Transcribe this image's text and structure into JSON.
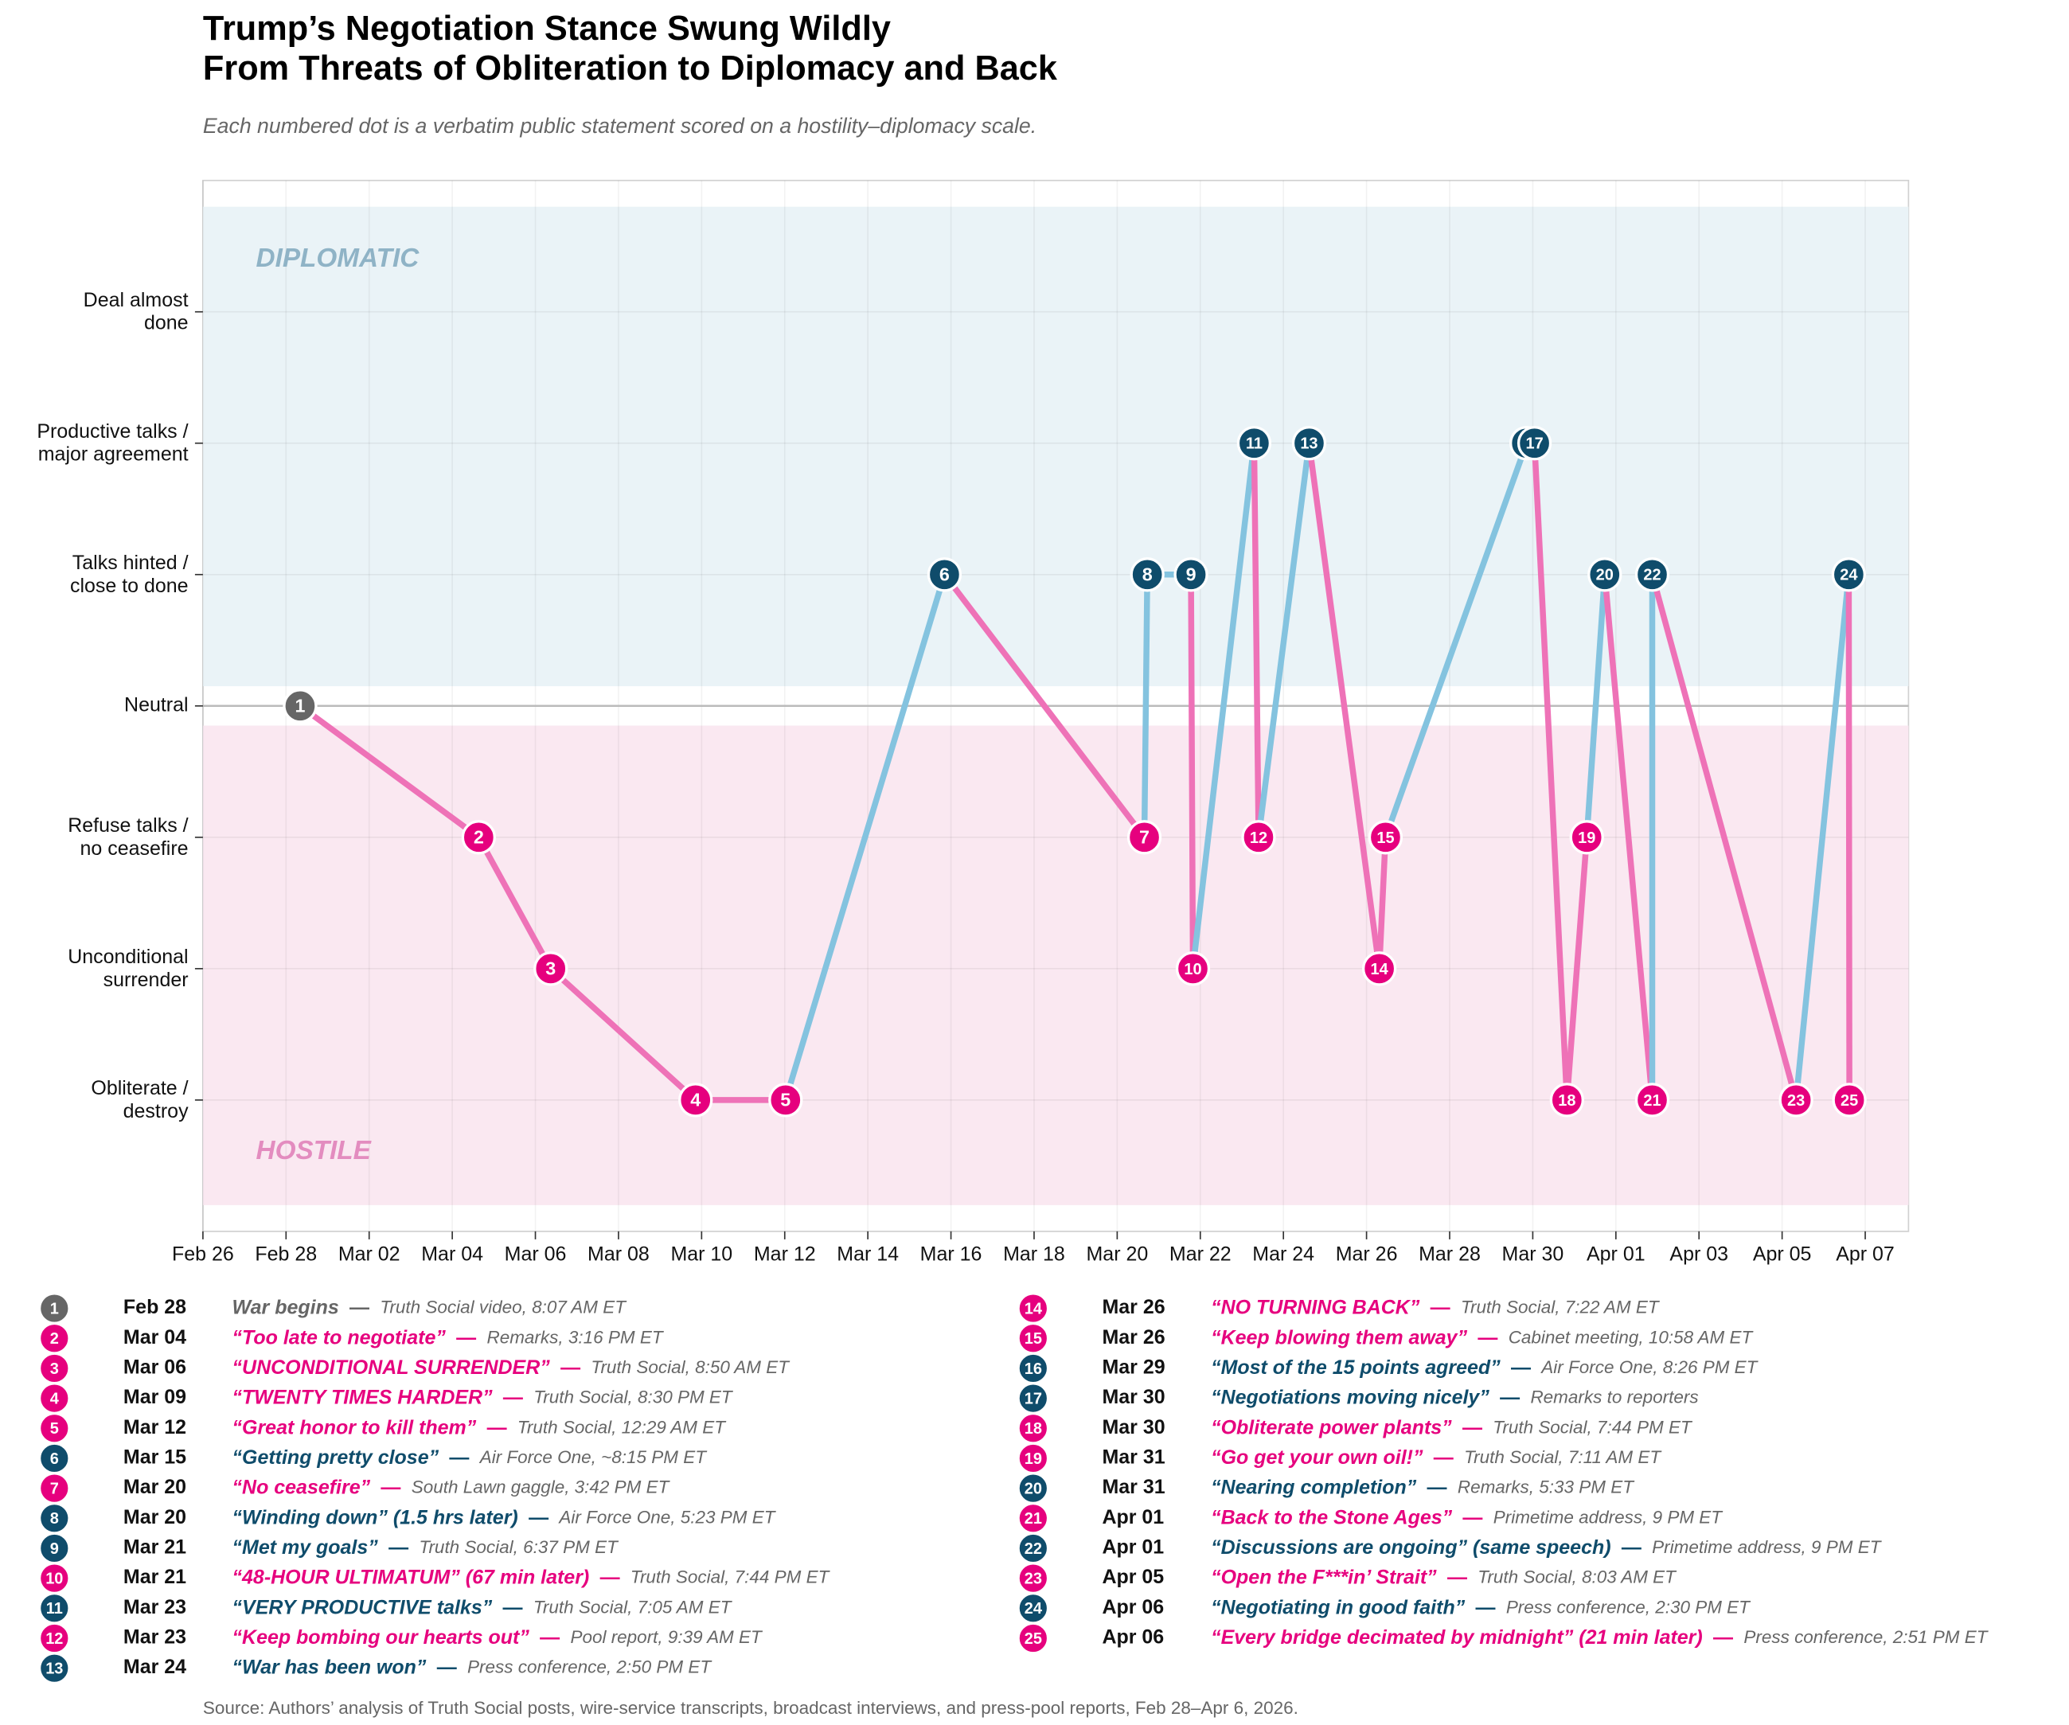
{
  "chart_data": {
    "type": "line",
    "title": [
      "Trump’s Negotiation Stance Swung Wildly",
      "From Threats of Obliteration to Diplomacy and Back"
    ],
    "subtitle": "Each numbered dot is a verbatim public statement scored on a hostility–diplomacy scale.",
    "source": "Source: Authors’ analysis of Truth Social posts, wire-service transcripts, broadcast interviews, and press-pool reports, Feb 28–Apr 6, 2026.",
    "xlim": [
      "2026-02-26T00:00",
      "2026-04-08T01:00"
    ],
    "xticks": [
      {
        "value": "2026-02-26T00:00",
        "label": "Feb 26"
      },
      {
        "value": "2026-02-28T00:00",
        "label": "Feb 28"
      },
      {
        "value": "2026-03-02T00:00",
        "label": "Mar 02"
      },
      {
        "value": "2026-03-04T00:00",
        "label": "Mar 04"
      },
      {
        "value": "2026-03-06T00:00",
        "label": "Mar 06"
      },
      {
        "value": "2026-03-08T00:00",
        "label": "Mar 08"
      },
      {
        "value": "2026-03-10T00:00",
        "label": "Mar 10"
      },
      {
        "value": "2026-03-12T00:00",
        "label": "Mar 12"
      },
      {
        "value": "2026-03-14T00:00",
        "label": "Mar 14"
      },
      {
        "value": "2026-03-16T00:00",
        "label": "Mar 16"
      },
      {
        "value": "2026-03-18T00:00",
        "label": "Mar 18"
      },
      {
        "value": "2026-03-20T00:00",
        "label": "Mar 20"
      },
      {
        "value": "2026-03-22T00:00",
        "label": "Mar 22"
      },
      {
        "value": "2026-03-24T00:00",
        "label": "Mar 24"
      },
      {
        "value": "2026-03-26T00:00",
        "label": "Mar 26"
      },
      {
        "value": "2026-03-28T00:00",
        "label": "Mar 28"
      },
      {
        "value": "2026-03-30T00:00",
        "label": "Mar 30"
      },
      {
        "value": "2026-04-01T00:00",
        "label": "Apr 01"
      },
      {
        "value": "2026-04-03T00:00",
        "label": "Apr 03"
      },
      {
        "value": "2026-04-05T00:00",
        "label": "Apr 05"
      },
      {
        "value": "2026-04-07T00:00",
        "label": "Apr 07"
      }
    ],
    "ylim": [
      -4,
      4
    ],
    "yticks": [
      {
        "value": -3,
        "label": "Obliterate / destroy"
      },
      {
        "value": -2,
        "label": "Unconditional surrender"
      },
      {
        "value": -1,
        "label": "Refuse talks / no ceasefire"
      },
      {
        "value": 0,
        "label": "Neutral"
      },
      {
        "value": 1,
        "label": "Talks hinted / close to done"
      },
      {
        "value": 2,
        "label": "Productive talks / major agreement"
      },
      {
        "value": 3,
        "label": "Deal almost done"
      }
    ],
    "grid": true,
    "bands": [
      {
        "label": "DIPLOMATIC",
        "range": [
          0.15,
          3.8
        ],
        "color": "#eaf3f7",
        "label_color": "#8fb3c6"
      },
      {
        "label": "HOSTILE",
        "range": [
          -3.8,
          -0.15
        ],
        "color": "#fae8f1",
        "label_color": "#e38cbf"
      }
    ],
    "colors": {
      "hostile": {
        "dot": "#e6007e",
        "line": "#ee72b7"
      },
      "diplomatic": {
        "dot": "#0f4c6b",
        "line": "#84c3df"
      },
      "neutral": {
        "dot": "#666666",
        "line": "#999999"
      }
    },
    "separator": "—",
    "x": [
      "2026-02-28T08:07",
      "2026-03-04T15:16",
      "2026-03-06T08:50",
      "2026-03-09T20:30",
      "2026-03-12T00:29",
      "2026-03-15T20:15",
      "2026-03-20T15:42",
      "2026-03-20T17:23",
      "2026-03-21T18:37",
      "2026-03-21T19:44",
      "2026-03-23T07:05",
      "2026-03-23T09:39",
      "2026-03-24T14:50",
      "2026-03-26T07:22",
      "2026-03-26T10:58",
      "2026-03-29T20:26",
      "2026-03-30T01:00",
      "2026-03-30T19:44",
      "2026-03-31T07:11",
      "2026-03-31T17:33",
      "2026-04-01T21:00",
      "2026-04-01T21:00",
      "2026-04-05T08:03",
      "2026-04-06T14:30",
      "2026-04-06T14:51"
    ],
    "values": [
      0,
      -1,
      -2,
      -3,
      -3,
      1,
      -1,
      1,
      1,
      -2,
      2,
      -1,
      2,
      -2,
      -1,
      2,
      2,
      -3,
      -1,
      1,
      -3,
      1,
      -3,
      1,
      -3
    ],
    "point_labels": [
      1,
      2,
      3,
      4,
      5,
      6,
      7,
      8,
      9,
      10,
      11,
      12,
      13,
      14,
      15,
      16,
      17,
      18,
      19,
      20,
      21,
      22,
      23,
      24,
      25
    ],
    "tones": [
      "neutral",
      "hostile",
      "hostile",
      "hostile",
      "hostile",
      "diplomatic",
      "hostile",
      "diplomatic",
      "diplomatic",
      "hostile",
      "diplomatic",
      "hostile",
      "diplomatic",
      "hostile",
      "hostile",
      "diplomatic",
      "diplomatic",
      "hostile",
      "hostile",
      "diplomatic",
      "hostile",
      "diplomatic",
      "hostile",
      "diplomatic",
      "hostile"
    ],
    "statements": [
      {
        "date": "Feb 28",
        "quote": "War begins",
        "source": "Truth Social video, 8:07 AM ET"
      },
      {
        "date": "Mar 04",
        "quote": "“Too late to negotiate”",
        "source": "Remarks, 3:16 PM ET"
      },
      {
        "date": "Mar 06",
        "quote": "“UNCONDITIONAL SURRENDER”",
        "source": "Truth Social, 8:50 AM ET"
      },
      {
        "date": "Mar 09",
        "quote": "“TWENTY TIMES HARDER”",
        "source": "Truth Social, 8:30 PM ET"
      },
      {
        "date": "Mar 12",
        "quote": "“Great honor to kill them”",
        "source": "Truth Social, 12:29 AM ET"
      },
      {
        "date": "Mar 15",
        "quote": "“Getting pretty close”",
        "source": "Air Force One, ~8:15 PM ET"
      },
      {
        "date": "Mar 20",
        "quote": "“No ceasefire”",
        "source": "South Lawn gaggle, 3:42 PM ET"
      },
      {
        "date": "Mar 20",
        "quote": "“Winding down” (1.5 hrs later)",
        "source": "Air Force One, 5:23 PM ET"
      },
      {
        "date": "Mar 21",
        "quote": "“Met my goals”",
        "source": "Truth Social, 6:37 PM ET"
      },
      {
        "date": "Mar 21",
        "quote": "“48-HOUR ULTIMATUM” (67 min later)",
        "source": "Truth Social, 7:44 PM ET"
      },
      {
        "date": "Mar 23",
        "quote": "“VERY PRODUCTIVE talks”",
        "source": "Truth Social, 7:05 AM ET"
      },
      {
        "date": "Mar 23",
        "quote": "“Keep bombing our hearts out”",
        "source": "Pool report, 9:39 AM ET"
      },
      {
        "date": "Mar 24",
        "quote": "“War has been won”",
        "source": "Press conference, 2:50 PM ET"
      },
      {
        "date": "Mar 26",
        "quote": "“NO TURNING BACK”",
        "source": "Truth Social, 7:22 AM ET"
      },
      {
        "date": "Mar 26",
        "quote": "“Keep blowing them away”",
        "source": "Cabinet meeting, 10:58 AM ET"
      },
      {
        "date": "Mar 29",
        "quote": "“Most of the 15 points agreed”",
        "source": "Air Force One, 8:26 PM ET"
      },
      {
        "date": "Mar 30",
        "quote": "“Negotiations moving nicely”",
        "source": "Remarks to reporters"
      },
      {
        "date": "Mar 30",
        "quote": "“Obliterate power plants”",
        "source": "Truth Social, 7:44 PM ET"
      },
      {
        "date": "Mar 31",
        "quote": "“Go get your own oil!”",
        "source": "Truth Social, 7:11 AM ET"
      },
      {
        "date": "Mar 31",
        "quote": "“Nearing completion”",
        "source": "Remarks, 5:33 PM ET"
      },
      {
        "date": "Apr 01",
        "quote": "“Back to the Stone Ages”",
        "source": "Primetime address, 9 PM ET"
      },
      {
        "date": "Apr 01",
        "quote": "“Discussions are ongoing” (same speech)",
        "source": "Primetime address, 9 PM ET"
      },
      {
        "date": "Apr 05",
        "quote": "“Open the F***in’ Strait”",
        "source": "Truth Social, 8:03 AM ET"
      },
      {
        "date": "Apr 06",
        "quote": "“Negotiating in good faith”",
        "source": "Press conference, 2:30 PM ET"
      },
      {
        "date": "Apr 06",
        "quote": "“Every bridge decimated by midnight” (21 min later)",
        "source": "Press conference, 2:51 PM ET"
      }
    ]
  }
}
